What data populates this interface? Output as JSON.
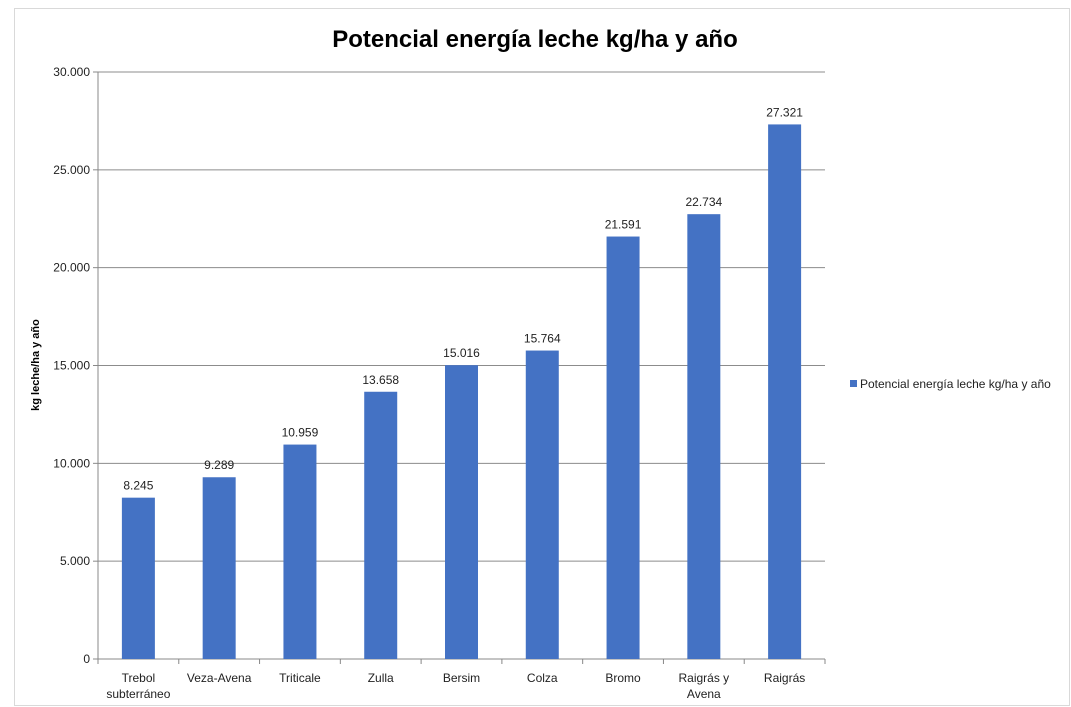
{
  "chart_data": {
    "type": "bar",
    "title": "Potencial energía leche kg/ha y año",
    "ylabel": "kg leche/ha y año",
    "xlabel": "",
    "ylim": [
      0,
      30000
    ],
    "yticks": [
      0,
      5000,
      10000,
      15000,
      20000,
      25000,
      30000
    ],
    "ytick_labels": [
      "0",
      "5.000",
      "10.000",
      "15.000",
      "20.000",
      "25.000",
      "30.000"
    ],
    "grid": true,
    "legend_position": "right",
    "bar_color": "#4472C4",
    "categories": [
      [
        "Trebol",
        "subterráneo"
      ],
      [
        "Veza-Avena"
      ],
      [
        "Triticale"
      ],
      [
        "Zulla"
      ],
      [
        "Bersim"
      ],
      [
        "Colza"
      ],
      [
        "Bromo"
      ],
      [
        "Raigrás y",
        "Avena"
      ],
      [
        "Raigrás"
      ]
    ],
    "series": [
      {
        "name": "Potencial energía leche kg/ha y año",
        "values": [
          8245,
          9289,
          10959,
          13658,
          15016,
          15764,
          21591,
          22734,
          27321
        ],
        "value_labels": [
          "8.245",
          "9.289",
          "10.959",
          "13.658",
          "15.016",
          "15.764",
          "21.591",
          "22.734",
          "27.321"
        ]
      }
    ]
  }
}
